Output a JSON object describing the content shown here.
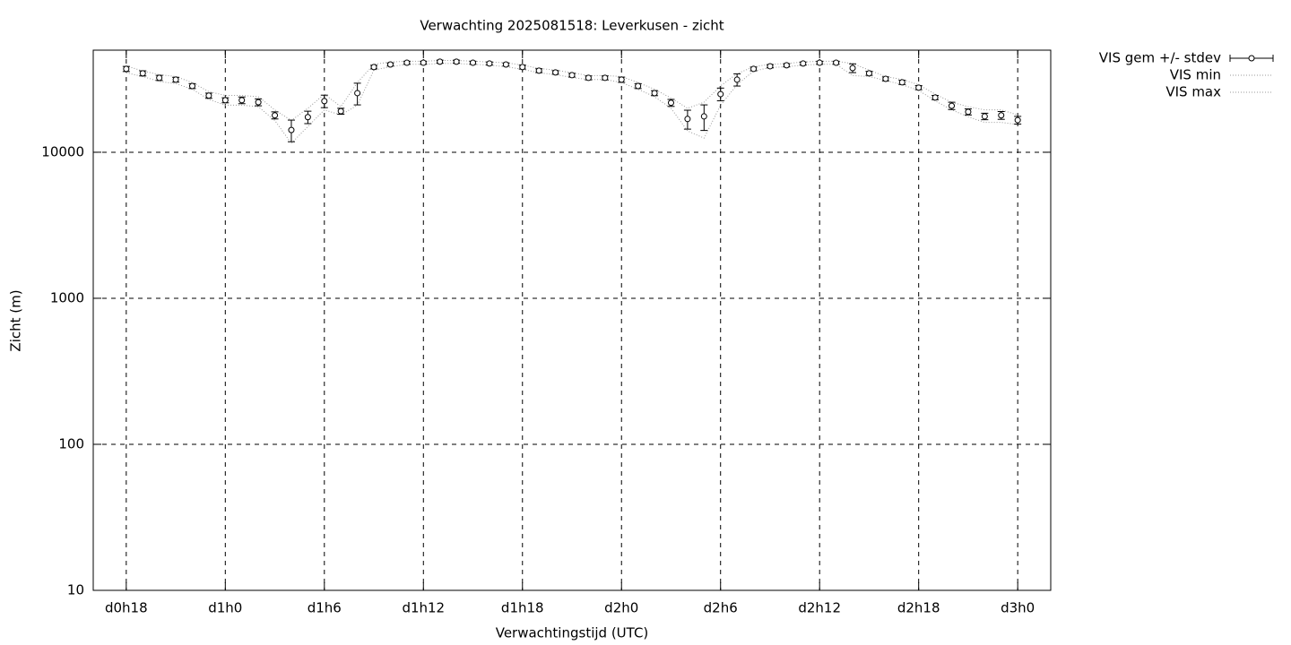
{
  "chart_data": {
    "type": "errorbar",
    "title": "Verwachting 2025081518: Leverkusen - zicht",
    "x_label": "Verwachtingstijd (UTC)",
    "y_label": "Zicht (m)",
    "yscale": "log",
    "grid": true,
    "legend": "outside-top-right",
    "xlim": [
      -2,
      56
    ],
    "ylim": [
      10,
      50000
    ],
    "xticks": [
      {
        "value": 0,
        "label": "d0h18"
      },
      {
        "value": 6,
        "label": "d1h0"
      },
      {
        "value": 12,
        "label": "d1h6"
      },
      {
        "value": 18,
        "label": "d1h12"
      },
      {
        "value": 24,
        "label": "d1h18"
      },
      {
        "value": 30,
        "label": "d2h0"
      },
      {
        "value": 36,
        "label": "d2h6"
      },
      {
        "value": 42,
        "label": "d2h12"
      },
      {
        "value": 48,
        "label": "d2h18"
      },
      {
        "value": 54,
        "label": "d3h0"
      }
    ],
    "yticks": [
      10,
      100,
      1000,
      10000
    ],
    "x": [
      0,
      1,
      2,
      3,
      4,
      5,
      6,
      7,
      8,
      9,
      10,
      11,
      12,
      13,
      14,
      15,
      16,
      17,
      18,
      19,
      20,
      21,
      22,
      23,
      24,
      25,
      26,
      27,
      28,
      29,
      30,
      31,
      32,
      33,
      34,
      35,
      36,
      37,
      38,
      39,
      40,
      41,
      42,
      43,
      44,
      45,
      46,
      47,
      48,
      49,
      50,
      51,
      52,
      53,
      54
    ],
    "series": [
      {
        "name": "VIS gem +/- stdev",
        "color": "#000000",
        "values": [
          37200,
          34700,
          32300,
          31400,
          28400,
          24400,
          22700,
          22700,
          22000,
          17900,
          14200,
          17400,
          22400,
          19100,
          25400,
          38300,
          39900,
          41000,
          41000,
          41700,
          41700,
          41000,
          40500,
          39900,
          38300,
          36200,
          35200,
          33700,
          32300,
          32300,
          31400,
          28400,
          25400,
          21800,
          16900,
          17600,
          25000,
          31400,
          37200,
          38800,
          39400,
          40500,
          41000,
          41000,
          37700,
          34700,
          31800,
          30100,
          27700,
          23700,
          20800,
          18900,
          17600,
          17900,
          16600
        ],
        "errors": [
          1500,
          1400,
          1300,
          1200,
          1100,
          1000,
          900,
          1200,
          1200,
          1000,
          2400,
          1700,
          2200,
          900,
          4300,
          1100,
          1000,
          1000,
          1000,
          1000,
          1000,
          1000,
          1000,
          1000,
          1200,
          1100,
          1000,
          1000,
          1000,
          1000,
          1300,
          1100,
          1000,
          1200,
          2500,
          3500,
          2500,
          3000,
          1100,
          1000,
          1000,
          1000,
          1000,
          1000,
          2600,
          1100,
          1000,
          1000,
          900,
          800,
          1200,
          900,
          900,
          1100,
          1000
        ]
      },
      {
        "name": "VIS min",
        "color": "#999999",
        "values": [
          35000,
          33000,
          30500,
          29500,
          27000,
          23000,
          21000,
          21000,
          20500,
          16500,
          11500,
          15000,
          19500,
          18000,
          21000,
          36500,
          38500,
          40000,
          40000,
          40500,
          40500,
          40000,
          39500,
          38500,
          37000,
          35000,
          34000,
          32500,
          31500,
          31500,
          30000,
          27000,
          24000,
          20000,
          14000,
          12500,
          21000,
          29000,
          36000,
          38000,
          38500,
          39500,
          40000,
          40000,
          33500,
          33000,
          31000,
          29000,
          26500,
          22500,
          19500,
          17500,
          16000,
          16000,
          15500
        ]
      },
      {
        "name": "VIS max",
        "color": "#999999",
        "values": [
          39000,
          36000,
          34000,
          33000,
          30000,
          26000,
          24500,
          24500,
          24000,
          19500,
          16500,
          20000,
          25000,
          20500,
          30000,
          40000,
          41500,
          42000,
          42000,
          42500,
          42500,
          42000,
          41500,
          41000,
          39500,
          37500,
          36500,
          35000,
          33500,
          33500,
          33000,
          30000,
          27000,
          23500,
          20000,
          22000,
          28500,
          34500,
          38500,
          40000,
          40500,
          41500,
          42000,
          42000,
          40500,
          36500,
          33000,
          31500,
          29000,
          25000,
          22000,
          20500,
          19500,
          19500,
          18000
        ]
      }
    ]
  }
}
